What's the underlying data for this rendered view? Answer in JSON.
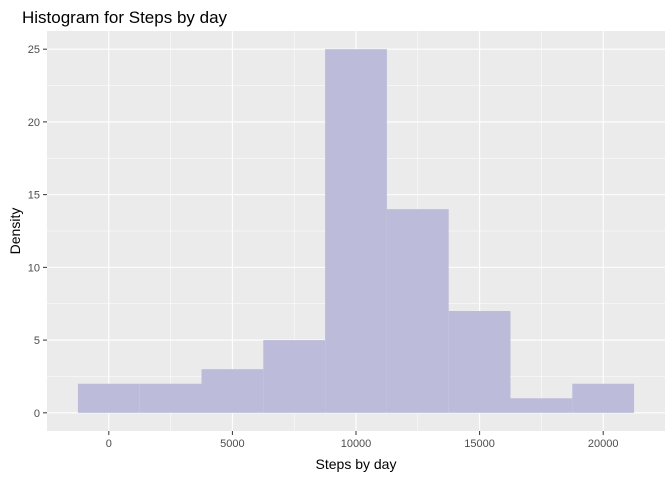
{
  "chart_data": {
    "type": "bar",
    "title": "Histogram for Steps by day",
    "xlabel": "Steps by day",
    "ylabel": "Density",
    "xlim": [
      -2500,
      22500
    ],
    "ylim": [
      -1.25,
      26.25
    ],
    "xticks": [
      0,
      5000,
      10000,
      15000,
      20000
    ],
    "xtick_labels": [
      "0",
      "5000",
      "10000",
      "15000",
      "20000"
    ],
    "yticks": [
      0,
      5,
      10,
      15,
      20,
      25
    ],
    "ytick_labels": [
      "0",
      "5",
      "10",
      "15",
      "20",
      "25"
    ],
    "grid": true,
    "legend": "none",
    "bins": [
      {
        "x0": -1250,
        "x1": 1250,
        "value": 2
      },
      {
        "x0": 1250,
        "x1": 3750,
        "value": 2
      },
      {
        "x0": 3750,
        "x1": 6250,
        "value": 3
      },
      {
        "x0": 6250,
        "x1": 8750,
        "value": 5
      },
      {
        "x0": 8750,
        "x1": 11250,
        "value": 25
      },
      {
        "x0": 11250,
        "x1": 13750,
        "value": 14
      },
      {
        "x0": 13750,
        "x1": 16250,
        "value": 7
      },
      {
        "x0": 16250,
        "x1": 18750,
        "value": 1
      },
      {
        "x0": 18750,
        "x1": 21250,
        "value": 2
      }
    ],
    "colors": {
      "panel": "#ebebeb",
      "grid_major": "#ffffff",
      "bar_fill": "#bcbcda",
      "tick_mark": "#333333"
    }
  }
}
